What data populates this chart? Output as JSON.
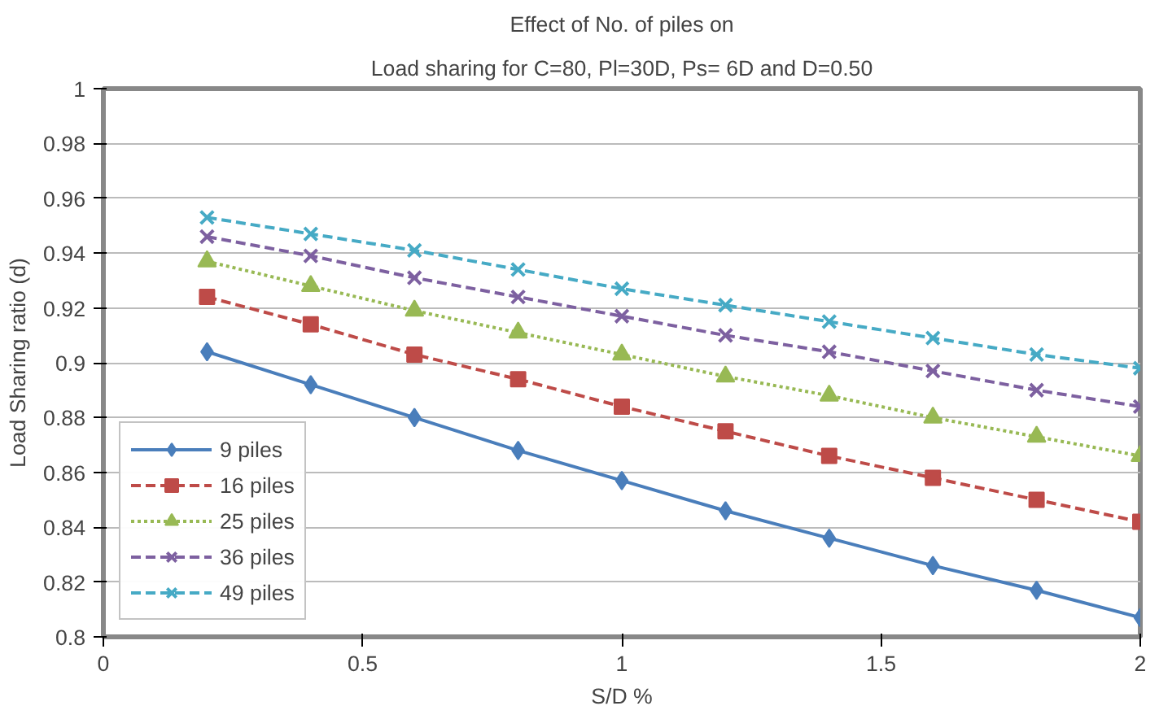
{
  "chart_data": {
    "type": "line",
    "title": "Effect of No. of piles on",
    "subtitle": "Load sharing for C=80, Pl=30D, Ps= 6D and D=0.50",
    "xlabel": "S/D %",
    "ylabel": "Load Sharing ratio (d)",
    "x": [
      0.2,
      0.4,
      0.6,
      0.8,
      1.0,
      1.2,
      1.4,
      1.6,
      1.8,
      2.0
    ],
    "xlim": [
      0,
      2
    ],
    "xticks": [
      0,
      0.5,
      1,
      1.5,
      2
    ],
    "ylim": [
      0.8,
      1
    ],
    "yticks": [
      0.8,
      0.82,
      0.84,
      0.86,
      0.88,
      0.9,
      0.92,
      0.94,
      0.96,
      0.98,
      1
    ],
    "grid": "y",
    "legend": "bottom left",
    "series": [
      {
        "name": "9 piles",
        "color": "#4a7ebb",
        "marker": "diamond",
        "line_style": "solid",
        "values": [
          0.904,
          0.892,
          0.88,
          0.868,
          0.857,
          0.846,
          0.836,
          0.826,
          0.817,
          0.807
        ]
      },
      {
        "name": "16 piles",
        "color": "#be4b48",
        "marker": "square",
        "line_style": "dashed",
        "values": [
          0.924,
          0.914,
          0.903,
          0.894,
          0.884,
          0.875,
          0.866,
          0.858,
          0.85,
          0.842
        ]
      },
      {
        "name": "25 piles",
        "color": "#98b954",
        "marker": "triangle",
        "line_style": "dotted",
        "values": [
          0.937,
          0.928,
          0.919,
          0.911,
          0.903,
          0.895,
          0.888,
          0.88,
          0.873,
          0.866
        ]
      },
      {
        "name": "36 piles",
        "color": "#7d60a0",
        "marker": "cross",
        "line_style": "dashed",
        "values": [
          0.946,
          0.939,
          0.931,
          0.924,
          0.917,
          0.91,
          0.904,
          0.897,
          0.89,
          0.884
        ]
      },
      {
        "name": "49 piles",
        "color": "#46aac5",
        "marker": "cross",
        "line_style": "dashed",
        "values": [
          0.953,
          0.947,
          0.941,
          0.934,
          0.927,
          0.921,
          0.915,
          0.909,
          0.903,
          0.898
        ]
      }
    ]
  }
}
